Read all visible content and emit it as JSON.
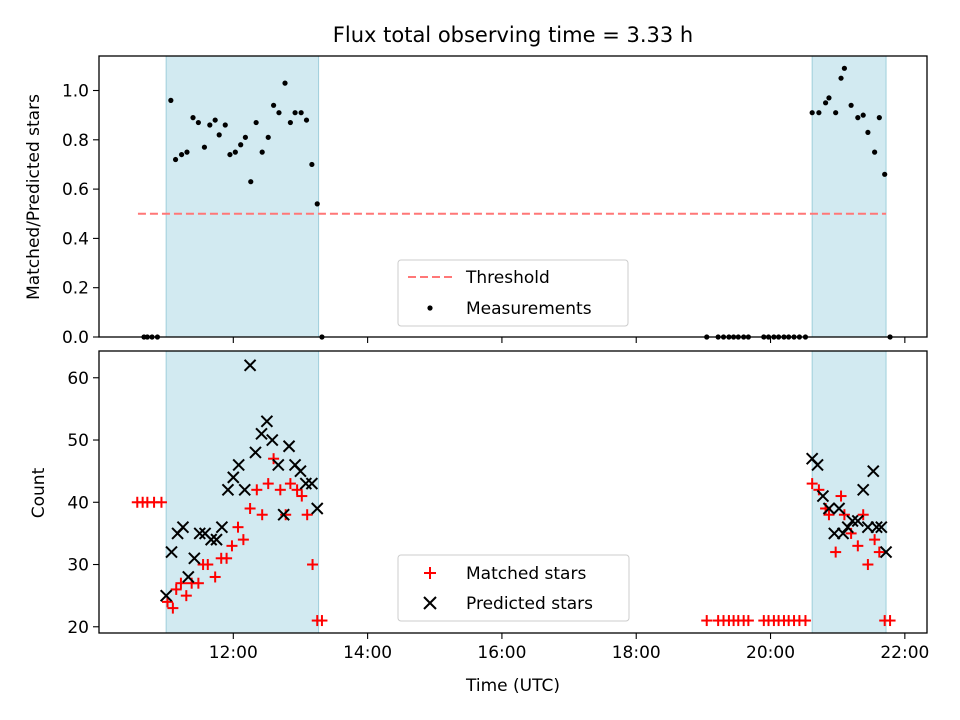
{
  "chart_data": [
    {
      "type": "scatter",
      "title": "Flux total observing time = 3.33 h",
      "xlabel": "",
      "ylabel": "Matched/Predicted stars",
      "xlim": [
        10.0,
        22.33
      ],
      "ylim": [
        0.0,
        1.14
      ],
      "yticks": [
        0.0,
        0.2,
        0.4,
        0.6,
        0.8,
        1.0
      ],
      "ytick_labels": [
        "0.0",
        "0.2",
        "0.4",
        "0.6",
        "0.8",
        "1.0"
      ],
      "xticks": [
        12,
        14,
        16,
        18,
        20,
        22
      ],
      "shaded_intervals": [
        [
          11.0,
          13.27
        ],
        [
          20.62,
          21.72
        ]
      ],
      "threshold": {
        "value": 0.5,
        "x_range": [
          10.58,
          21.72
        ],
        "color": "#ff7777"
      },
      "legend": {
        "position": "lower-center",
        "entries": [
          "Threshold",
          "Measurements"
        ]
      },
      "series": [
        {
          "name": "Measurements",
          "color": "#000000",
          "points": [
            [
              10.67,
              0.0
            ],
            [
              10.72,
              0.0
            ],
            [
              10.79,
              0.0
            ],
            [
              10.87,
              0.0
            ],
            [
              11.07,
              0.96
            ],
            [
              11.14,
              0.72
            ],
            [
              11.23,
              0.74
            ],
            [
              11.31,
              0.75
            ],
            [
              11.4,
              0.89
            ],
            [
              11.48,
              0.87
            ],
            [
              11.57,
              0.77
            ],
            [
              11.65,
              0.86
            ],
            [
              11.73,
              0.88
            ],
            [
              11.79,
              0.82
            ],
            [
              11.88,
              0.86
            ],
            [
              11.95,
              0.74
            ],
            [
              12.03,
              0.75
            ],
            [
              12.11,
              0.78
            ],
            [
              12.18,
              0.81
            ],
            [
              12.26,
              0.63
            ],
            [
              12.34,
              0.87
            ],
            [
              12.43,
              0.75
            ],
            [
              12.52,
              0.81
            ],
            [
              12.6,
              0.94
            ],
            [
              12.68,
              0.91
            ],
            [
              12.77,
              1.03
            ],
            [
              12.85,
              0.87
            ],
            [
              12.92,
              0.91
            ],
            [
              13.01,
              0.91
            ],
            [
              13.09,
              0.88
            ],
            [
              13.17,
              0.7
            ],
            [
              13.25,
              0.54
            ],
            [
              13.32,
              0.0
            ],
            [
              19.05,
              0.0
            ],
            [
              19.22,
              0.0
            ],
            [
              19.3,
              0.0
            ],
            [
              19.38,
              0.0
            ],
            [
              19.45,
              0.0
            ],
            [
              19.52,
              0.0
            ],
            [
              19.6,
              0.0
            ],
            [
              19.67,
              0.0
            ],
            [
              19.9,
              0.0
            ],
            [
              19.97,
              0.0
            ],
            [
              20.05,
              0.0
            ],
            [
              20.12,
              0.0
            ],
            [
              20.2,
              0.0
            ],
            [
              20.27,
              0.0
            ],
            [
              20.35,
              0.0
            ],
            [
              20.43,
              0.0
            ],
            [
              20.52,
              0.0
            ],
            [
              20.62,
              0.91
            ],
            [
              20.72,
              0.91
            ],
            [
              20.82,
              0.95
            ],
            [
              20.87,
              0.97
            ],
            [
              20.97,
              0.91
            ],
            [
              21.05,
              1.05
            ],
            [
              21.1,
              1.09
            ],
            [
              21.2,
              0.94
            ],
            [
              21.3,
              0.89
            ],
            [
              21.38,
              0.9
            ],
            [
              21.45,
              0.83
            ],
            [
              21.55,
              0.75
            ],
            [
              21.62,
              0.89
            ],
            [
              21.7,
              0.66
            ],
            [
              21.78,
              0.0
            ]
          ]
        }
      ]
    },
    {
      "type": "scatter",
      "title": "",
      "xlabel": "Time (UTC)",
      "ylabel": "Count",
      "xlim": [
        10.0,
        22.33
      ],
      "ylim": [
        19.0,
        64.3
      ],
      "yticks": [
        20,
        30,
        40,
        50,
        60
      ],
      "ytick_labels": [
        "20",
        "30",
        "40",
        "50",
        "60"
      ],
      "xticks": [
        12,
        14,
        16,
        18,
        20,
        22
      ],
      "xtick_labels": [
        "12:00",
        "14:00",
        "16:00",
        "18:00",
        "20:00",
        "22:00"
      ],
      "shaded_intervals": [
        [
          11.0,
          13.27
        ],
        [
          20.62,
          21.72
        ]
      ],
      "legend": {
        "position": "lower-center",
        "entries": [
          "Matched stars",
          "Predicted stars"
        ]
      },
      "series": [
        {
          "name": "Matched stars",
          "marker": "plus",
          "color": "#ff0000",
          "points": [
            [
              10.57,
              40
            ],
            [
              10.65,
              40
            ],
            [
              10.72,
              40
            ],
            [
              10.82,
              40
            ],
            [
              10.93,
              40
            ],
            [
              11.02,
              24
            ],
            [
              11.1,
              23
            ],
            [
              11.15,
              26
            ],
            [
              11.22,
              27
            ],
            [
              11.3,
              25
            ],
            [
              11.38,
              27
            ],
            [
              11.48,
              27
            ],
            [
              11.55,
              30
            ],
            [
              11.62,
              30
            ],
            [
              11.73,
              28
            ],
            [
              11.82,
              31
            ],
            [
              11.9,
              31
            ],
            [
              11.98,
              33
            ],
            [
              12.07,
              36
            ],
            [
              12.15,
              34
            ],
            [
              12.25,
              39
            ],
            [
              12.35,
              42
            ],
            [
              12.43,
              38
            ],
            [
              12.52,
              43
            ],
            [
              12.6,
              47
            ],
            [
              12.7,
              42
            ],
            [
              12.78,
              38
            ],
            [
              12.85,
              43
            ],
            [
              12.95,
              42
            ],
            [
              13.02,
              41
            ],
            [
              13.1,
              38
            ],
            [
              13.18,
              30
            ],
            [
              13.25,
              21
            ],
            [
              13.32,
              21
            ],
            [
              19.05,
              21
            ],
            [
              19.22,
              21
            ],
            [
              19.3,
              21
            ],
            [
              19.38,
              21
            ],
            [
              19.45,
              21
            ],
            [
              19.52,
              21
            ],
            [
              19.6,
              21
            ],
            [
              19.67,
              21
            ],
            [
              19.9,
              21
            ],
            [
              19.97,
              21
            ],
            [
              20.05,
              21
            ],
            [
              20.12,
              21
            ],
            [
              20.2,
              21
            ],
            [
              20.27,
              21
            ],
            [
              20.35,
              21
            ],
            [
              20.43,
              21
            ],
            [
              20.52,
              21
            ],
            [
              20.62,
              43
            ],
            [
              20.72,
              42
            ],
            [
              20.82,
              39
            ],
            [
              20.87,
              38
            ],
            [
              20.97,
              32
            ],
            [
              21.05,
              41
            ],
            [
              21.1,
              38
            ],
            [
              21.2,
              35
            ],
            [
              21.3,
              33
            ],
            [
              21.38,
              38
            ],
            [
              21.45,
              30
            ],
            [
              21.55,
              34
            ],
            [
              21.62,
              32
            ],
            [
              21.7,
              21
            ],
            [
              21.78,
              21
            ]
          ]
        },
        {
          "name": "Predicted stars",
          "marker": "x",
          "color": "#000000",
          "points": [
            [
              11.0,
              25
            ],
            [
              11.08,
              32
            ],
            [
              11.17,
              35
            ],
            [
              11.25,
              36
            ],
            [
              11.33,
              28
            ],
            [
              11.42,
              31
            ],
            [
              11.5,
              35
            ],
            [
              11.58,
              35
            ],
            [
              11.67,
              34
            ],
            [
              11.75,
              34
            ],
            [
              11.83,
              36
            ],
            [
              11.92,
              42
            ],
            [
              12.0,
              44
            ],
            [
              12.08,
              46
            ],
            [
              12.17,
              42
            ],
            [
              12.25,
              62
            ],
            [
              12.33,
              48
            ],
            [
              12.42,
              51
            ],
            [
              12.5,
              53
            ],
            [
              12.58,
              50
            ],
            [
              12.67,
              46
            ],
            [
              12.75,
              38
            ],
            [
              12.83,
              49
            ],
            [
              12.92,
              46
            ],
            [
              13.0,
              45
            ],
            [
              13.08,
              43
            ],
            [
              13.17,
              43
            ],
            [
              13.25,
              39
            ],
            [
              20.62,
              47
            ],
            [
              20.7,
              46
            ],
            [
              20.78,
              41
            ],
            [
              20.87,
              39
            ],
            [
              20.95,
              35
            ],
            [
              21.02,
              39
            ],
            [
              21.08,
              35
            ],
            [
              21.15,
              36
            ],
            [
              21.22,
              37
            ],
            [
              21.3,
              37
            ],
            [
              21.38,
              42
            ],
            [
              21.45,
              36
            ],
            [
              21.53,
              45
            ],
            [
              21.58,
              36
            ],
            [
              21.65,
              36
            ],
            [
              21.72,
              32
            ]
          ]
        }
      ]
    }
  ]
}
